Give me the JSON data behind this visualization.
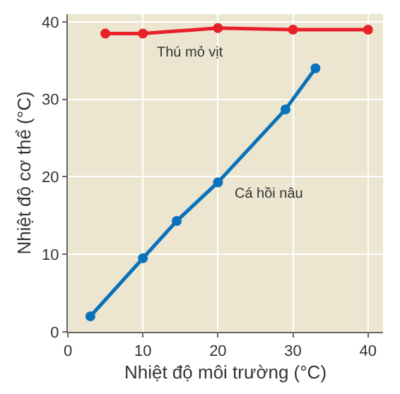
{
  "chart_data": {
    "type": "line",
    "xlabel": "Nhiệt độ môi trường (°C)",
    "ylabel": "Nhiệt độ cơ thể (°C)",
    "series": [
      {
        "name": "Thú mỏ vịt",
        "color": "#e8202a",
        "x": [
          5,
          10,
          20,
          30,
          40
        ],
        "values": [
          38.5,
          38.5,
          39.2,
          39,
          39
        ]
      },
      {
        "name": "Cá hồi nâu",
        "color": "#0a72ba",
        "x": [
          3,
          10,
          14.5,
          20,
          29,
          33
        ],
        "values": [
          2,
          9.5,
          14.3,
          19.3,
          28.7,
          34
        ]
      }
    ],
    "xlim": [
      0,
      42
    ],
    "ylim": [
      0,
      41
    ],
    "xticks": [
      0,
      10,
      20,
      30,
      40
    ],
    "yticks": [
      0,
      10,
      20,
      30,
      40
    ],
    "grid": true,
    "marker": "circle",
    "line_style": "solid",
    "legend": false
  }
}
